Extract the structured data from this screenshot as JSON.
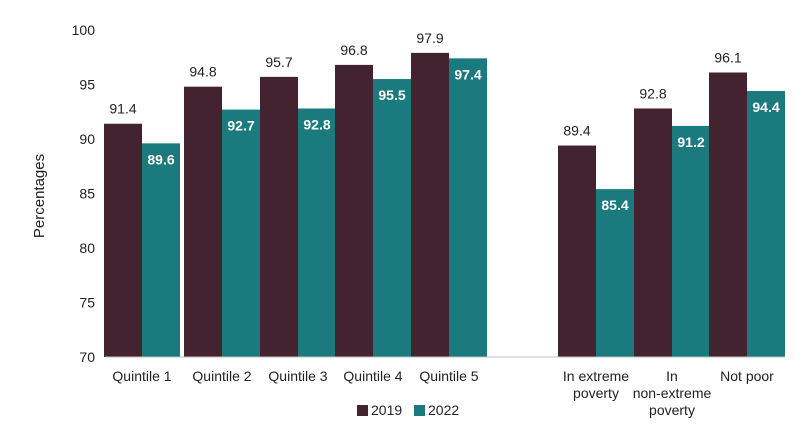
{
  "chart_data": {
    "type": "bar",
    "title": "",
    "xlabel": "",
    "ylabel": "Percentages",
    "ylim": [
      70,
      100
    ],
    "yticks": [
      70,
      75,
      80,
      85,
      90,
      95,
      100
    ],
    "categories": [
      [
        "Quintile 1"
      ],
      [
        "Quintile 2"
      ],
      [
        "Quintile 3"
      ],
      [
        "Quintile 4"
      ],
      [
        "Quintile 5"
      ],
      [
        "In extreme",
        "poverty"
      ],
      [
        "In",
        "non-extreme",
        "poverty"
      ],
      [
        "Not poor"
      ]
    ],
    "series": [
      {
        "name": "2019",
        "color": "#432330",
        "values": [
          91.4,
          94.8,
          95.7,
          96.8,
          97.9,
          89.4,
          92.8,
          96.1
        ]
      },
      {
        "name": "2022",
        "color": "#1a7a7e",
        "values": [
          89.6,
          92.7,
          92.8,
          95.5,
          97.4,
          85.4,
          91.2,
          94.4
        ]
      }
    ],
    "legend_position": "bottom"
  }
}
